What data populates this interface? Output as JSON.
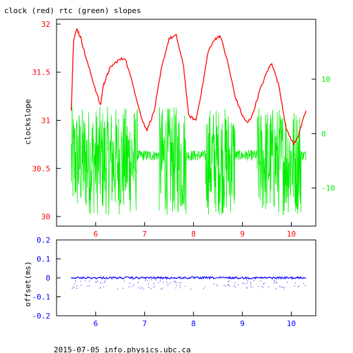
{
  "title": "clock (red) rtc (green) slopes",
  "footer": "2015-07-05 info.physics.ubc.ca",
  "colors": {
    "clock": "#ff0000",
    "rtc": "#00ee00",
    "offset": "#0000ff",
    "axes": "#000000"
  },
  "chart_data": [
    {
      "type": "line",
      "title": "clock (red) rtc (green) slopes",
      "ylabel": "clockslope",
      "xlim": [
        5.2,
        10.5
      ],
      "ylim": [
        29.9,
        32.05
      ],
      "x_ticks": [
        "6",
        "7",
        "8",
        "9",
        "10"
      ],
      "y_ticks": [
        "30",
        "30.5",
        "31",
        "31.5",
        "32"
      ],
      "y2lim": [
        -17,
        21
      ],
      "y2_ticks": [
        "-10",
        "0",
        "10"
      ],
      "tick_color_y": "#ff0000",
      "tick_color_y2": "#00ee00",
      "series": [
        {
          "name": "clock",
          "color": "#ff0000",
          "x": [
            5.5,
            5.55,
            5.62,
            5.7,
            5.8,
            5.95,
            6.1,
            6.15,
            6.22,
            6.3,
            6.45,
            6.6,
            6.8,
            6.95,
            7.05,
            7.2,
            7.35,
            7.5,
            7.65,
            7.8,
            7.9,
            8.05,
            8.2,
            8.3,
            8.45,
            8.55,
            8.7,
            8.85,
            9.0,
            9.1,
            9.2,
            9.35,
            9.5,
            9.6,
            9.75,
            9.9,
            10.05,
            10.15,
            10.3
          ],
          "y": [
            31.1,
            31.85,
            31.95,
            31.85,
            31.65,
            31.4,
            31.15,
            31.35,
            31.45,
            31.55,
            31.62,
            31.65,
            31.3,
            31.0,
            30.9,
            31.1,
            31.55,
            31.85,
            31.88,
            31.55,
            31.05,
            31.0,
            31.4,
            31.72,
            31.85,
            31.88,
            31.6,
            31.25,
            31.05,
            30.97,
            31.05,
            31.3,
            31.5,
            31.6,
            31.35,
            30.9,
            30.75,
            30.85,
            31.1
          ]
        },
        {
          "name": "rtc",
          "color": "#00ee00",
          "axis": "right",
          "segments": [
            {
              "x": [
                5.5,
                6.85
              ],
              "center": -5,
              "spread": 10
            },
            {
              "x": [
                6.85,
                7.3
              ],
              "center": -4,
              "spread": 1
            },
            {
              "x": [
                7.3,
                7.85
              ],
              "center": -5,
              "spread": 10
            },
            {
              "x": [
                7.85,
                8.25
              ],
              "center": -4,
              "spread": 1
            },
            {
              "x": [
                8.25,
                8.85
              ],
              "center": -5,
              "spread": 10
            },
            {
              "x": [
                8.85,
                9.3
              ],
              "center": -4,
              "spread": 1
            },
            {
              "x": [
                9.3,
                10.2
              ],
              "center": -5,
              "spread": 10
            },
            {
              "x": [
                10.2,
                10.3
              ],
              "center": -4,
              "spread": 1
            }
          ]
        }
      ]
    },
    {
      "type": "line",
      "ylabel": "offset(ms)",
      "xlim": [
        5.2,
        10.5
      ],
      "ylim": [
        -0.2,
        0.2
      ],
      "x_ticks": [
        "6",
        "7",
        "8",
        "9",
        "10"
      ],
      "y_ticks": [
        "-0.2",
        "-0.1",
        "0",
        "0.1",
        "0.2"
      ],
      "tick_color": "#0000ff",
      "series": [
        {
          "name": "offset",
          "color": "#0000ff",
          "x": [
            5.5,
            10.3
          ],
          "y": [
            0.0,
            0.0
          ]
        }
      ]
    }
  ]
}
